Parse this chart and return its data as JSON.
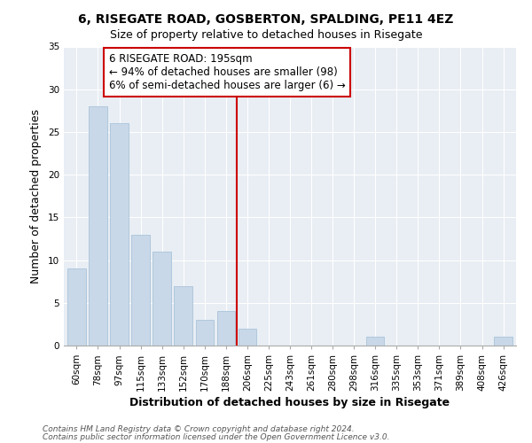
{
  "title": "6, RISEGATE ROAD, GOSBERTON, SPALDING, PE11 4EZ",
  "subtitle": "Size of property relative to detached houses in Risegate",
  "xlabel": "Distribution of detached houses by size in Risegate",
  "ylabel": "Number of detached properties",
  "bar_labels": [
    "60sqm",
    "78sqm",
    "97sqm",
    "115sqm",
    "133sqm",
    "152sqm",
    "170sqm",
    "188sqm",
    "206sqm",
    "225sqm",
    "243sqm",
    "261sqm",
    "280sqm",
    "298sqm",
    "316sqm",
    "335sqm",
    "353sqm",
    "371sqm",
    "389sqm",
    "408sqm",
    "426sqm"
  ],
  "bar_values": [
    9,
    28,
    26,
    13,
    11,
    7,
    3,
    4,
    2,
    0,
    0,
    0,
    0,
    0,
    1,
    0,
    0,
    0,
    0,
    0,
    1
  ],
  "bar_color": "#c8d8e8",
  "bar_edge_color": "#b0c8dc",
  "vline_color": "#cc0000",
  "annotation_title": "6 RISEGATE ROAD: 195sqm",
  "annotation_line1": "← 94% of detached houses are smaller (98)",
  "annotation_line2": "6% of semi-detached houses are larger (6) →",
  "annotation_box_color": "#ffffff",
  "annotation_box_edge_color": "#cc0000",
  "ylim": [
    0,
    35
  ],
  "yticks": [
    0,
    5,
    10,
    15,
    20,
    25,
    30,
    35
  ],
  "footer_line1": "Contains HM Land Registry data © Crown copyright and database right 2024.",
  "footer_line2": "Contains public sector information licensed under the Open Government Licence v3.0.",
  "fig_bg_color": "#ffffff",
  "plot_bg_color": "#e8eef4",
  "grid_color": "#ffffff",
  "title_fontsize": 10,
  "subtitle_fontsize": 9,
  "axis_label_fontsize": 9,
  "tick_fontsize": 7.5,
  "annotation_fontsize": 8.5,
  "footer_fontsize": 6.5,
  "vline_index": 7.5
}
